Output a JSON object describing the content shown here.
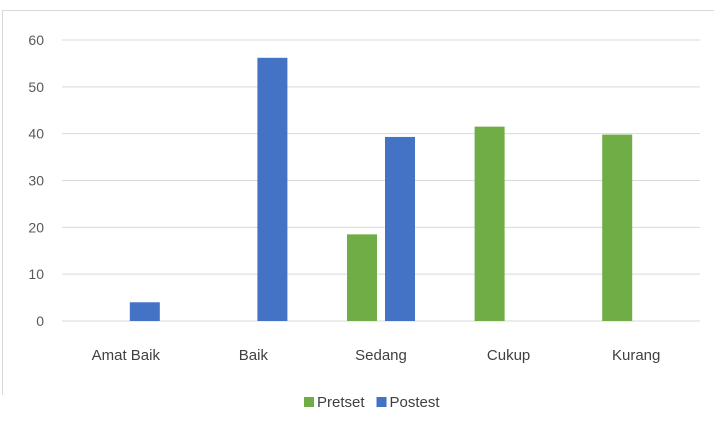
{
  "chart_data": {
    "type": "bar",
    "categories": [
      "Amat Baik",
      "Baik",
      "Sedang",
      "Cukup",
      "Kurang"
    ],
    "series": [
      {
        "name": "Pretset",
        "color": "#70ad47",
        "values": [
          0,
          0,
          18.5,
          41.5,
          39.8
        ]
      },
      {
        "name": "Postest",
        "color": "#4472c4",
        "values": [
          4,
          56.2,
          39.3,
          0,
          0
        ]
      }
    ],
    "ylim": [
      0,
      60
    ],
    "yticks": [
      0,
      10,
      20,
      30,
      40,
      50,
      60
    ],
    "grid": true,
    "legend": "bottom",
    "gridColor": "#d9d9d9"
  }
}
